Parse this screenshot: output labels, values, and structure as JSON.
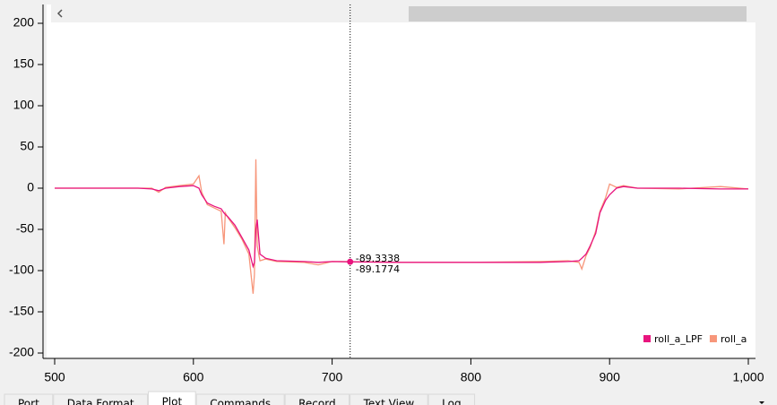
{
  "chart_data": {
    "type": "line",
    "x": [
      500,
      560,
      570,
      575,
      580,
      590,
      600,
      604,
      606,
      610,
      615,
      620,
      622,
      623,
      625,
      630,
      635,
      640,
      643,
      644,
      645,
      646,
      648,
      652,
      660,
      680,
      690,
      700,
      713,
      750,
      800,
      850,
      870,
      878,
      880,
      883,
      886,
      890,
      893,
      897,
      900,
      905,
      910,
      920,
      950,
      980,
      1000
    ],
    "series": [
      {
        "name": "roll_a",
        "color": "#f7967a",
        "values": [
          0,
          0,
          0,
          -5,
          1,
          3,
          5,
          15,
          -5,
          -20,
          -24,
          -28,
          -68,
          -30,
          -36,
          -48,
          -62,
          -80,
          -128,
          -105,
          35,
          -70,
          -88,
          -86,
          -89,
          -90,
          -93,
          -89,
          -89.1774,
          -90,
          -90,
          -89,
          -88,
          -90,
          -98,
          -82,
          -72,
          -52,
          -28,
          -12,
          5,
          1,
          3,
          0,
          -1,
          2,
          -1
        ]
      },
      {
        "name": "roll_a_LPF",
        "color": "#e8147e",
        "values": [
          0,
          0,
          -1,
          -3,
          0,
          2,
          3,
          0,
          -8,
          -18,
          -22,
          -25,
          -30,
          -32,
          -35,
          -45,
          -60,
          -75,
          -95,
          -90,
          -50,
          -38,
          -80,
          -85,
          -88,
          -89,
          -90,
          -89,
          -89.3338,
          -90,
          -90,
          -90,
          -89,
          -88,
          -85,
          -80,
          -70,
          -55,
          -30,
          -15,
          -8,
          0,
          2,
          0,
          0,
          -1,
          -1
        ]
      }
    ],
    "xlim": [
      500,
      1000
    ],
    "xticks": [
      500,
      600,
      700,
      800,
      900,
      {
        "value": 1000,
        "label": "1,000"
      }
    ],
    "ylim": [
      -200,
      200
    ],
    "yticks": [
      -200,
      -150,
      -100,
      -50,
      0,
      50,
      100,
      150,
      200
    ],
    "cursor": 713,
    "legend": "lower right"
  },
  "tabs": [
    "Port",
    "Data Format",
    "Plot",
    "Commands",
    "Record",
    "Text View",
    "Log"
  ],
  "active_tab": "Plot"
}
